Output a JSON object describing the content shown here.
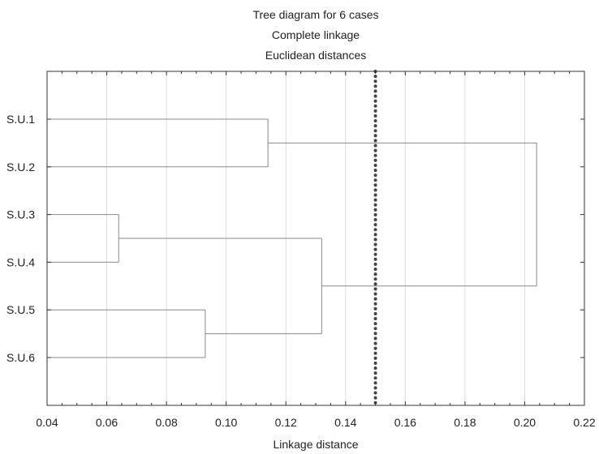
{
  "chart_data": {
    "type": "dendrogram",
    "title_lines": [
      "Tree diagram for 6 cases",
      "Complete linkage",
      "Euclidean distances"
    ],
    "xlabel": "Linkage distance",
    "ylabel": "",
    "xlim": [
      0.04,
      0.22
    ],
    "x_ticks": [
      "0.04",
      "0.06",
      "0.08",
      "0.10",
      "0.12",
      "0.14",
      "0.16",
      "0.18",
      "0.20",
      "0.22"
    ],
    "leaves": [
      "S.U.1",
      "S.U.2",
      "S.U.3",
      "S.U.4",
      "S.U.5",
      "S.U.6"
    ],
    "merges": [
      {
        "left": "S.U.3",
        "right": "S.U.4",
        "distance": 0.064
      },
      {
        "left": "S.U.5",
        "right": "S.U.6",
        "distance": 0.093
      },
      {
        "left": "S.U.1",
        "right": "S.U.2",
        "distance": 0.114
      },
      {
        "left": "(S.U.3,S.U.4)",
        "right": "(S.U.5,S.U.6)",
        "distance": 0.132
      },
      {
        "left": "(S.U.1,S.U.2)",
        "right": "(S.U.3,S.U.4,S.U.5,S.U.6)",
        "distance": 0.204
      }
    ],
    "cutoff_line": 0.15,
    "grid": true,
    "colors": {
      "branch": "#8a8a8a",
      "cutoff": "#444444",
      "grid": "#dddddd",
      "frame": "#333333"
    }
  }
}
